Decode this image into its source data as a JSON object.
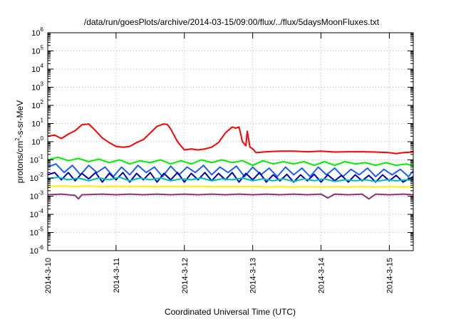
{
  "chart_data": {
    "type": "line",
    "title": "/data/run/goesPlots/archive/2014-03-15/09:00/flux/../flux/5daysMoonFluxes.txt",
    "xlabel": "Coordinated Universal Time (UTC)",
    "ylabel": "protons/cm²-s-sr-MeV",
    "ylabel_parts": {
      "pre": "protons/cm",
      "sup": "2",
      "post": "-s-sr-MeV"
    },
    "yscale": "log",
    "ylim_exponents": [
      -6,
      6
    ],
    "y_ticks": [
      {
        "base": "10",
        "exp": "6"
      },
      {
        "base": "10",
        "exp": "5"
      },
      {
        "base": "10",
        "exp": "4"
      },
      {
        "base": "10",
        "exp": "3"
      },
      {
        "base": "10",
        "exp": "2"
      },
      {
        "base": "10",
        "exp": "1"
      },
      {
        "base": "10",
        "exp": "0"
      },
      {
        "base": "10",
        "exp": "-1"
      },
      {
        "base": "10",
        "exp": "-2"
      },
      {
        "base": "10",
        "exp": "-3"
      },
      {
        "base": "10",
        "exp": "-4"
      },
      {
        "base": "10",
        "exp": "-5"
      },
      {
        "base": "10",
        "exp": "-6"
      }
    ],
    "x_ticks": [
      {
        "label": "2014-3-10",
        "day": 0
      },
      {
        "label": "2014-3-11",
        "day": 1
      },
      {
        "label": "2014-3-12",
        "day": 2
      },
      {
        "label": "2014-3-13",
        "day": 3
      },
      {
        "label": "2014-3-14",
        "day": 4
      },
      {
        "label": "2014-3-15",
        "day": 5
      }
    ],
    "xlim_days": [
      0,
      5.35
    ],
    "grid": true,
    "legend": "none",
    "series": [
      {
        "color": "#ff0000",
        "points": [
          [
            0.0,
            2.0
          ],
          [
            0.1,
            2.3
          ],
          [
            0.2,
            1.5
          ],
          [
            0.3,
            2.6
          ],
          [
            0.4,
            4.0
          ],
          [
            0.5,
            8.5
          ],
          [
            0.6,
            9.5
          ],
          [
            0.7,
            4.0
          ],
          [
            0.8,
            1.6
          ],
          [
            0.9,
            0.9
          ],
          [
            1.0,
            0.55
          ],
          [
            1.1,
            0.5
          ],
          [
            1.2,
            0.55
          ],
          [
            1.3,
            0.9
          ],
          [
            1.4,
            1.3
          ],
          [
            1.5,
            3.0
          ],
          [
            1.6,
            7.0
          ],
          [
            1.7,
            9.5
          ],
          [
            1.75,
            9.0
          ],
          [
            1.8,
            5.0
          ],
          [
            1.9,
            1.0
          ],
          [
            2.0,
            0.35
          ],
          [
            2.1,
            0.4
          ],
          [
            2.2,
            0.35
          ],
          [
            2.3,
            0.4
          ],
          [
            2.4,
            0.5
          ],
          [
            2.5,
            0.9
          ],
          [
            2.6,
            3.0
          ],
          [
            2.7,
            6.5
          ],
          [
            2.75,
            5.5
          ],
          [
            2.8,
            6.5
          ],
          [
            2.85,
            1.0
          ],
          [
            2.9,
            0.6
          ],
          [
            2.92,
            3.8
          ],
          [
            2.96,
            0.5
          ],
          [
            3.0,
            0.4
          ],
          [
            3.05,
            0.25
          ],
          [
            3.2,
            0.28
          ],
          [
            3.4,
            0.3
          ],
          [
            3.6,
            0.3
          ],
          [
            3.8,
            0.28
          ],
          [
            4.0,
            0.3
          ],
          [
            4.2,
            0.27
          ],
          [
            4.4,
            0.28
          ],
          [
            4.6,
            0.28
          ],
          [
            4.8,
            0.27
          ],
          [
            5.0,
            0.25
          ],
          [
            5.1,
            0.22
          ],
          [
            5.2,
            0.25
          ],
          [
            5.35,
            0.27
          ]
        ]
      },
      {
        "color": "#00ee00",
        "points": [
          [
            0.0,
            0.1
          ],
          [
            0.15,
            0.14
          ],
          [
            0.3,
            0.09
          ],
          [
            0.45,
            0.12
          ],
          [
            0.6,
            0.08
          ],
          [
            0.75,
            0.11
          ],
          [
            0.9,
            0.07
          ],
          [
            1.05,
            0.1
          ],
          [
            1.2,
            0.06
          ],
          [
            1.35,
            0.09
          ],
          [
            1.5,
            0.07
          ],
          [
            1.65,
            0.1
          ],
          [
            1.8,
            0.06
          ],
          [
            1.95,
            0.09
          ],
          [
            2.1,
            0.06
          ],
          [
            2.25,
            0.1
          ],
          [
            2.4,
            0.07
          ],
          [
            2.55,
            0.1
          ],
          [
            2.7,
            0.07
          ],
          [
            2.85,
            0.09
          ],
          [
            3.0,
            0.05
          ],
          [
            3.15,
            0.09
          ],
          [
            3.3,
            0.06
          ],
          [
            3.45,
            0.08
          ],
          [
            3.6,
            0.06
          ],
          [
            3.75,
            0.08
          ],
          [
            3.9,
            0.05
          ],
          [
            4.05,
            0.08
          ],
          [
            4.2,
            0.05
          ],
          [
            4.35,
            0.08
          ],
          [
            4.5,
            0.06
          ],
          [
            4.65,
            0.07
          ],
          [
            4.8,
            0.05
          ],
          [
            4.95,
            0.07
          ],
          [
            5.1,
            0.05
          ],
          [
            5.25,
            0.06
          ],
          [
            5.35,
            0.045
          ]
        ]
      },
      {
        "color": "#1e5cff",
        "points": [
          [
            0.0,
            0.04
          ],
          [
            0.12,
            0.06
          ],
          [
            0.24,
            0.02
          ],
          [
            0.36,
            0.05
          ],
          [
            0.48,
            0.015
          ],
          [
            0.6,
            0.05
          ],
          [
            0.72,
            0.02
          ],
          [
            0.84,
            0.04
          ],
          [
            0.96,
            0.012
          ],
          [
            1.08,
            0.04
          ],
          [
            1.2,
            0.015
          ],
          [
            1.32,
            0.05
          ],
          [
            1.44,
            0.02
          ],
          [
            1.56,
            0.04
          ],
          [
            1.68,
            0.012
          ],
          [
            1.8,
            0.045
          ],
          [
            1.92,
            0.015
          ],
          [
            2.04,
            0.04
          ],
          [
            2.16,
            0.02
          ],
          [
            2.28,
            0.05
          ],
          [
            2.4,
            0.015
          ],
          [
            2.52,
            0.04
          ],
          [
            2.64,
            0.02
          ],
          [
            2.76,
            0.045
          ],
          [
            2.88,
            0.012
          ],
          [
            3.0,
            0.04
          ],
          [
            3.12,
            0.015
          ],
          [
            3.24,
            0.035
          ],
          [
            3.36,
            0.012
          ],
          [
            3.48,
            0.04
          ],
          [
            3.6,
            0.015
          ],
          [
            3.72,
            0.035
          ],
          [
            3.84,
            0.012
          ],
          [
            3.96,
            0.04
          ],
          [
            4.08,
            0.015
          ],
          [
            4.2,
            0.035
          ],
          [
            4.32,
            0.012
          ],
          [
            4.44,
            0.03
          ],
          [
            4.56,
            0.015
          ],
          [
            4.68,
            0.035
          ],
          [
            4.8,
            0.012
          ],
          [
            4.92,
            0.03
          ],
          [
            5.04,
            0.015
          ],
          [
            5.16,
            0.03
          ],
          [
            5.28,
            0.012
          ],
          [
            5.35,
            0.025
          ]
        ]
      },
      {
        "color": "#0000aa",
        "points": [
          [
            0.0,
            0.015
          ],
          [
            0.1,
            0.02
          ],
          [
            0.2,
            0.008
          ],
          [
            0.3,
            0.02
          ],
          [
            0.4,
            0.007
          ],
          [
            0.5,
            0.018
          ],
          [
            0.6,
            0.009
          ],
          [
            0.7,
            0.02
          ],
          [
            0.8,
            0.006
          ],
          [
            0.9,
            0.018
          ],
          [
            1.0,
            0.008
          ],
          [
            1.1,
            0.02
          ],
          [
            1.2,
            0.006
          ],
          [
            1.3,
            0.018
          ],
          [
            1.4,
            0.008
          ],
          [
            1.5,
            0.02
          ],
          [
            1.6,
            0.006
          ],
          [
            1.7,
            0.018
          ],
          [
            1.8,
            0.008
          ],
          [
            1.9,
            0.02
          ],
          [
            2.0,
            0.006
          ],
          [
            2.1,
            0.018
          ],
          [
            2.2,
            0.008
          ],
          [
            2.3,
            0.02
          ],
          [
            2.4,
            0.007
          ],
          [
            2.5,
            0.018
          ],
          [
            2.6,
            0.008
          ],
          [
            2.7,
            0.02
          ],
          [
            2.8,
            0.006
          ],
          [
            2.9,
            0.018
          ],
          [
            3.0,
            0.008
          ],
          [
            3.1,
            0.02
          ],
          [
            3.2,
            0.006
          ],
          [
            3.3,
            0.015
          ],
          [
            3.4,
            0.007
          ],
          [
            3.5,
            0.016
          ],
          [
            3.6,
            0.006
          ],
          [
            3.7,
            0.015
          ],
          [
            3.8,
            0.007
          ],
          [
            3.9,
            0.016
          ],
          [
            4.0,
            0.006
          ],
          [
            4.1,
            0.015
          ],
          [
            4.2,
            0.007
          ],
          [
            4.3,
            0.014
          ],
          [
            4.4,
            0.006
          ],
          [
            4.5,
            0.015
          ],
          [
            4.6,
            0.007
          ],
          [
            4.7,
            0.014
          ],
          [
            4.8,
            0.006
          ],
          [
            4.9,
            0.015
          ],
          [
            5.0,
            0.007
          ],
          [
            5.1,
            0.014
          ],
          [
            5.2,
            0.006
          ],
          [
            5.35,
            0.012
          ]
        ]
      },
      {
        "color": "#00bbbb",
        "points": [
          [
            0.0,
            0.009
          ],
          [
            0.15,
            0.011
          ],
          [
            0.3,
            0.008
          ],
          [
            0.45,
            0.01
          ],
          [
            0.6,
            0.007
          ],
          [
            0.75,
            0.01
          ],
          [
            0.9,
            0.008
          ],
          [
            1.05,
            0.011
          ],
          [
            1.2,
            0.007
          ],
          [
            1.35,
            0.01
          ],
          [
            1.5,
            0.008
          ],
          [
            1.65,
            0.01
          ],
          [
            1.8,
            0.007
          ],
          [
            1.95,
            0.009
          ],
          [
            2.1,
            0.008
          ],
          [
            2.25,
            0.01
          ],
          [
            2.4,
            0.007
          ],
          [
            2.55,
            0.009
          ],
          [
            2.7,
            0.008
          ],
          [
            2.85,
            0.01
          ],
          [
            3.0,
            0.007
          ],
          [
            3.15,
            0.009
          ],
          [
            3.3,
            0.007
          ],
          [
            3.45,
            0.009
          ],
          [
            3.6,
            0.0065
          ],
          [
            3.75,
            0.009
          ],
          [
            3.9,
            0.007
          ],
          [
            4.05,
            0.009
          ],
          [
            4.2,
            0.0065
          ],
          [
            4.35,
            0.008
          ],
          [
            4.5,
            0.007
          ],
          [
            4.65,
            0.008
          ],
          [
            4.8,
            0.0065
          ],
          [
            4.95,
            0.008
          ],
          [
            5.1,
            0.007
          ],
          [
            5.25,
            0.008
          ],
          [
            5.35,
            0.0075
          ]
        ]
      },
      {
        "color": "#ffee00",
        "points": [
          [
            0.0,
            0.0035
          ],
          [
            0.2,
            0.0036
          ],
          [
            0.4,
            0.0034
          ],
          [
            0.6,
            0.0036
          ],
          [
            0.8,
            0.0033
          ],
          [
            1.0,
            0.0035
          ],
          [
            1.2,
            0.0034
          ],
          [
            1.4,
            0.0035
          ],
          [
            1.6,
            0.0033
          ],
          [
            1.8,
            0.0035
          ],
          [
            2.0,
            0.0034
          ],
          [
            2.2,
            0.0035
          ],
          [
            2.4,
            0.0033
          ],
          [
            2.6,
            0.0034
          ],
          [
            2.8,
            0.0033
          ],
          [
            3.0,
            0.0034
          ],
          [
            3.2,
            0.0032
          ],
          [
            3.4,
            0.0033
          ],
          [
            3.6,
            0.0032
          ],
          [
            3.8,
            0.0033
          ],
          [
            4.0,
            0.0032
          ],
          [
            4.2,
            0.0033
          ],
          [
            4.4,
            0.0032
          ],
          [
            4.6,
            0.0033
          ],
          [
            4.8,
            0.0032
          ],
          [
            5.0,
            0.0033
          ],
          [
            5.2,
            0.0032
          ],
          [
            5.35,
            0.0033
          ]
        ]
      },
      {
        "color": "#883377",
        "points": [
          [
            0.0,
            0.0012
          ],
          [
            0.2,
            0.0013
          ],
          [
            0.4,
            0.0011
          ],
          [
            0.45,
            0.0007
          ],
          [
            0.5,
            0.0012
          ],
          [
            0.8,
            0.0013
          ],
          [
            1.0,
            0.0012
          ],
          [
            1.2,
            0.0013
          ],
          [
            1.4,
            0.0012
          ],
          [
            1.6,
            0.0013
          ],
          [
            1.8,
            0.0012
          ],
          [
            2.0,
            0.0013
          ],
          [
            2.2,
            0.0012
          ],
          [
            2.4,
            0.0013
          ],
          [
            2.6,
            0.0012
          ],
          [
            2.8,
            0.0013
          ],
          [
            3.0,
            0.0012
          ],
          [
            3.2,
            0.0013
          ],
          [
            3.4,
            0.0012
          ],
          [
            3.6,
            0.0013
          ],
          [
            3.8,
            0.0012
          ],
          [
            4.0,
            0.0013
          ],
          [
            4.1,
            0.0008
          ],
          [
            4.2,
            0.0013
          ],
          [
            4.4,
            0.0012
          ],
          [
            4.6,
            0.0013
          ],
          [
            4.7,
            0.0007
          ],
          [
            4.8,
            0.0013
          ],
          [
            5.0,
            0.0012
          ],
          [
            5.2,
            0.0013
          ],
          [
            5.35,
            0.0012
          ]
        ]
      }
    ]
  }
}
